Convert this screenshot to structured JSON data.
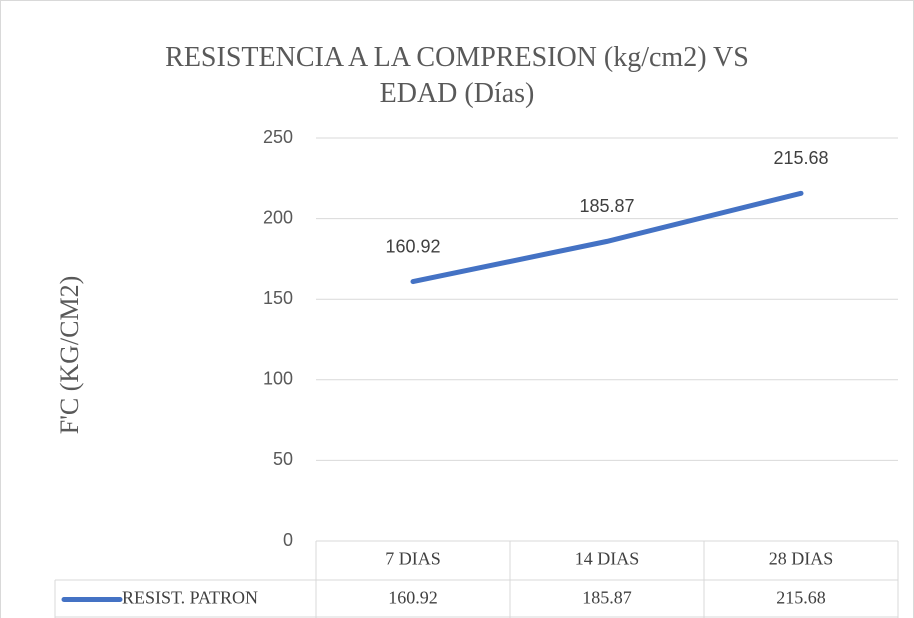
{
  "chart_data": {
    "type": "line",
    "title": "RESISTENCIA A LA COMPRESION (kg/cm2) VS EDAD (Días)",
    "y_label": "F'C (KG/CM2)",
    "categories": [
      "7 DIAS",
      "14 DIAS",
      "28 DIAS"
    ],
    "series": [
      {
        "name": "RESIST. PATRON",
        "color": "#4472c4",
        "values": [
          160.92,
          185.87,
          215.68
        ]
      }
    ],
    "ylim": [
      0,
      250
    ],
    "yticks": [
      0,
      50,
      100,
      150,
      200,
      250
    ],
    "grid": true,
    "data_table": true
  }
}
